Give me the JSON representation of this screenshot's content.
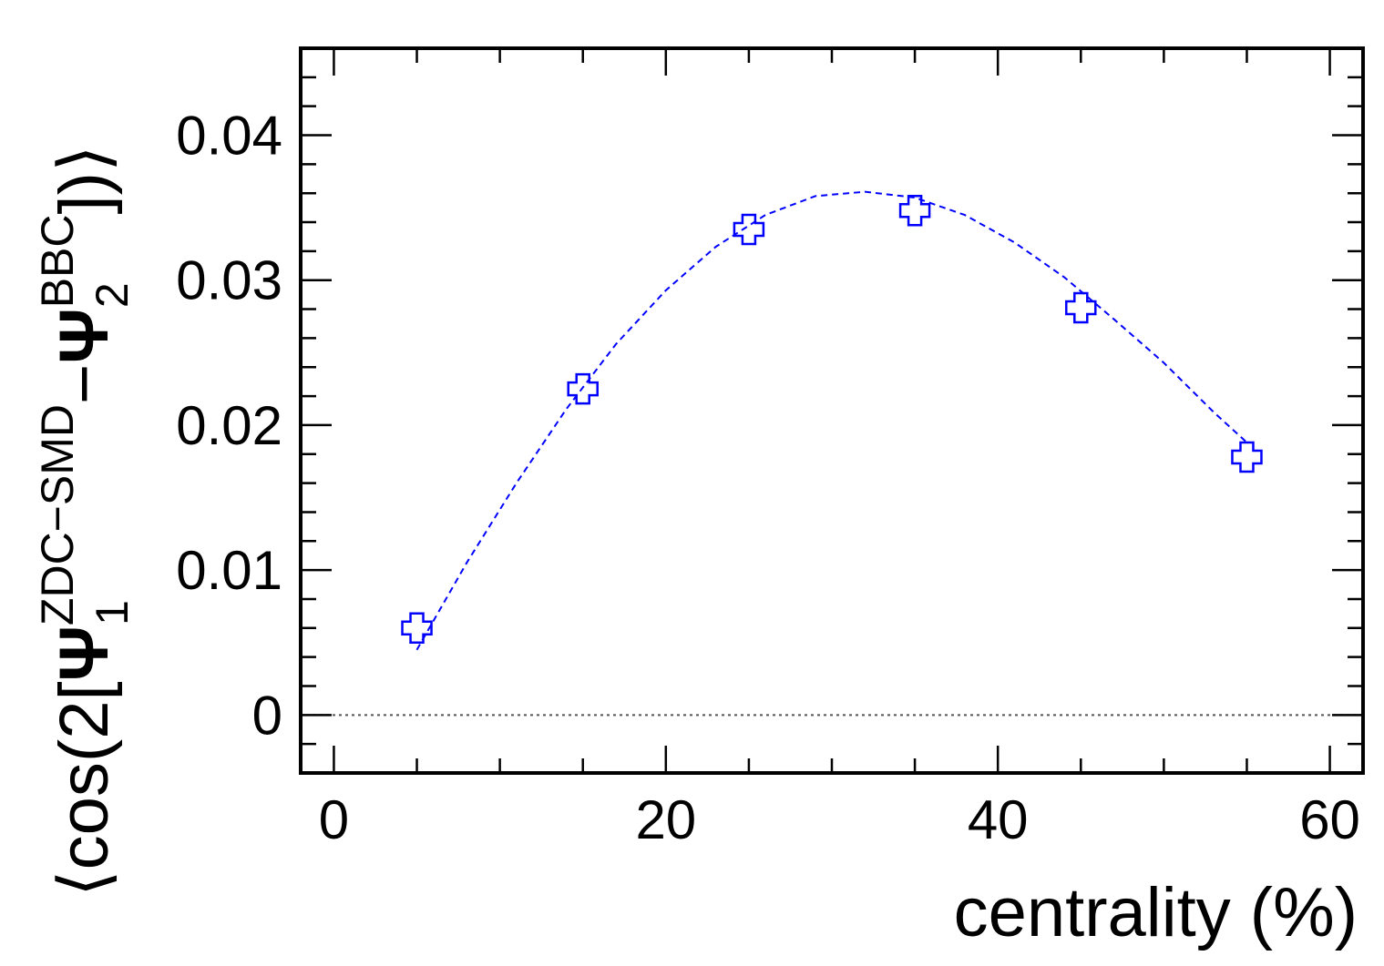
{
  "chart_data": {
    "type": "scatter",
    "xlabel": "centrality (%)",
    "ylabel": {
      "prefix": "⟨cos(2[",
      "psi1": "Ψ",
      "sub1": "1",
      "sup1": "ZDC−SMD",
      "minus": "−",
      "psi2": "Ψ",
      "sub2": "2",
      "sup2": "BBC",
      "suffix": "])⟩"
    },
    "xlim": [
      -2,
      62
    ],
    "ylim": [
      -0.004,
      0.046
    ],
    "x_ticks": [
      0,
      20,
      40,
      60
    ],
    "x_tick_labels": [
      "0",
      "20",
      "40",
      "60"
    ],
    "y_ticks": [
      0,
      0.01,
      0.02,
      0.03,
      0.04
    ],
    "y_tick_labels": [
      "0",
      "0.01",
      "0.02",
      "0.03",
      "0.04"
    ],
    "grid": false,
    "legend": "none",
    "series": [
      {
        "marker": "open-cross",
        "color": "#0000ff",
        "x": [
          5,
          15,
          25,
          35,
          45,
          55
        ],
        "y": [
          0.006,
          0.0225,
          0.0335,
          0.0348,
          0.0281,
          0.0178
        ]
      }
    ],
    "fit": {
      "style": "dashed",
      "color": "#0000ff",
      "x": [
        5,
        8,
        11,
        14,
        17,
        20,
        23,
        26,
        29,
        32,
        35,
        38,
        41,
        44,
        47,
        50,
        53,
        55
      ],
      "y": [
        0.0045,
        0.0105,
        0.016,
        0.0211,
        0.0256,
        0.0293,
        0.0323,
        0.0345,
        0.0358,
        0.0361,
        0.0357,
        0.0345,
        0.0326,
        0.0302,
        0.0273,
        0.0243,
        0.0209,
        0.0188
      ]
    },
    "reference_line": {
      "y": 0,
      "style": "dotted",
      "color": "#555555"
    }
  }
}
